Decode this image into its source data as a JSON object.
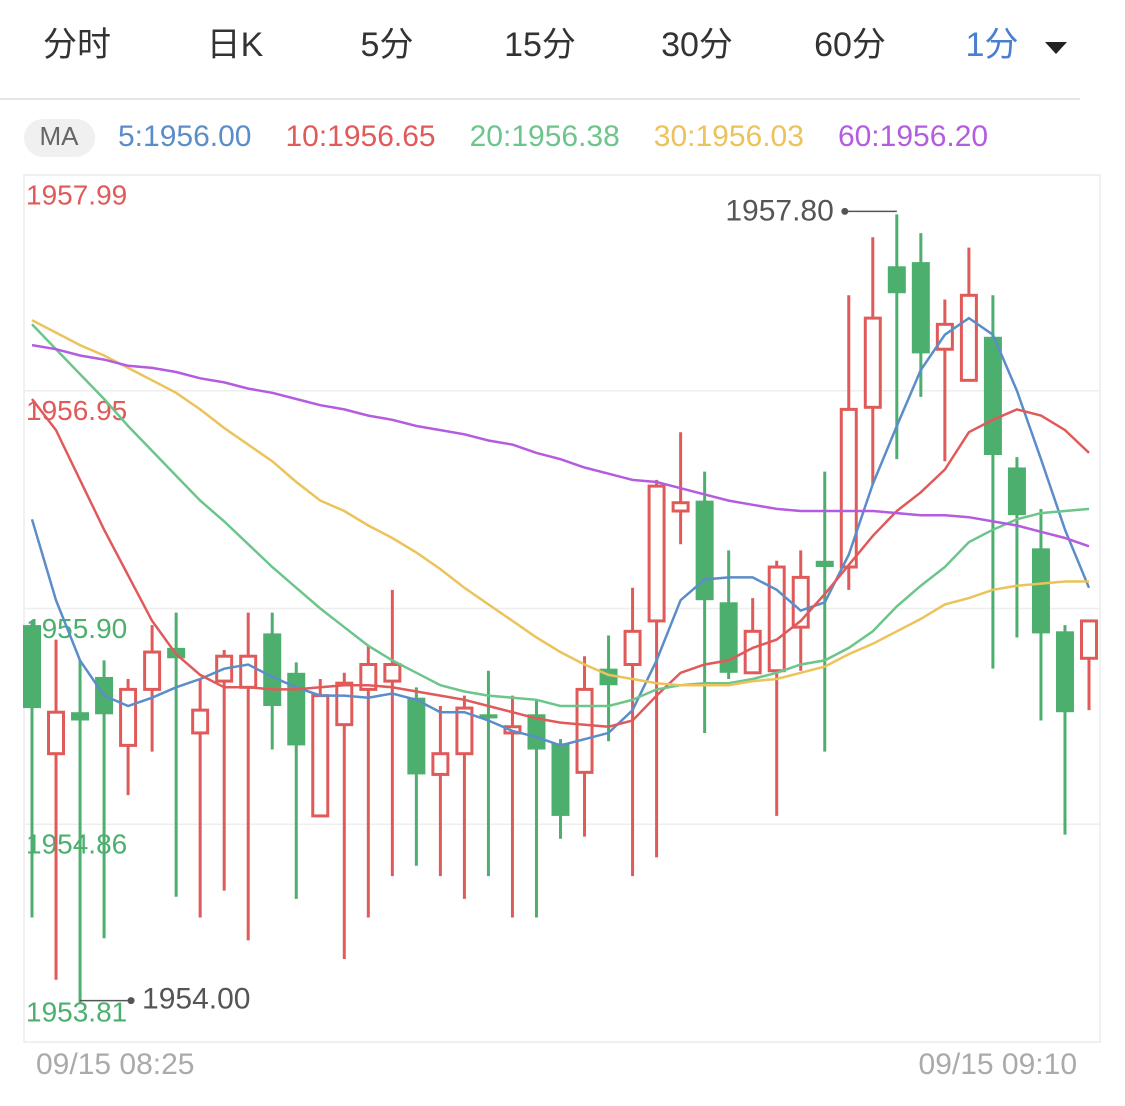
{
  "tabs": {
    "items": [
      "分时",
      "日K",
      "5分",
      "15分",
      "30分",
      "60分",
      "1分"
    ],
    "selected": 6
  },
  "chart_data": {
    "type": "candlestick",
    "legend_title": "MA",
    "categories": [
      "09/15 08:25",
      null,
      null,
      null,
      null,
      null,
      null,
      null,
      null,
      null,
      null,
      null,
      null,
      null,
      null,
      null,
      null,
      null,
      null,
      null,
      null,
      null,
      null,
      null,
      null,
      null,
      null,
      null,
      null,
      null,
      null,
      null,
      null,
      null,
      null,
      null,
      null,
      null,
      null,
      null,
      null,
      null,
      null,
      null,
      "09/15 09:10"
    ],
    "open": [
      1955.82,
      1955.2,
      1955.4,
      1955.57,
      1955.24,
      1955.51,
      1955.71,
      1955.3,
      1955.55,
      1955.52,
      1955.78,
      1955.59,
      1954.9,
      1955.34,
      1955.51,
      1955.55,
      1955.47,
      1955.1,
      1955.2,
      1955.39,
      1955.3,
      1955.39,
      1955.25,
      1955.11,
      1955.61,
      1955.63,
      1955.84,
      1956.37,
      1956.42,
      1955.93,
      1955.59,
      1955.6,
      1955.81,
      1956.13,
      1956.1,
      1956.87,
      1957.55,
      1957.57,
      1957.15,
      1957.0,
      1957.21,
      1956.58,
      1956.19,
      1955.79,
      1955.66
    ],
    "high": [
      1955.84,
      1955.75,
      1955.65,
      1955.65,
      1955.56,
      1955.82,
      1955.88,
      1955.56,
      1955.7,
      1955.88,
      1955.88,
      1955.64,
      1955.56,
      1955.59,
      1955.72,
      1955.99,
      1955.52,
      1955.43,
      1955.48,
      1955.6,
      1955.48,
      1955.46,
      1955.27,
      1955.67,
      1955.77,
      1956.0,
      1956.52,
      1956.75,
      1956.56,
      1956.18,
      1955.95,
      1956.13,
      1956.18,
      1956.56,
      1957.41,
      1957.69,
      1957.8,
      1957.71,
      1957.39,
      1957.64,
      1957.41,
      1956.63,
      1956.38,
      1955.82,
      1955.84
    ],
    "low": [
      1954.41,
      1954.11,
      1954.0,
      1954.31,
      1955.0,
      1955.21,
      1954.51,
      1954.41,
      1954.54,
      1954.3,
      1955.22,
      1954.5,
      1954.9,
      1954.21,
      1954.41,
      1954.61,
      1954.66,
      1954.61,
      1954.5,
      1954.61,
      1954.41,
      1954.41,
      1954.79,
      1954.8,
      1955.26,
      1954.61,
      1954.7,
      1956.21,
      1955.3,
      1955.56,
      1955.59,
      1954.9,
      1955.6,
      1955.21,
      1955.99,
      1956.5,
      1956.62,
      1956.92,
      1956.61,
      1957.0,
      1955.61,
      1955.76,
      1955.36,
      1954.81,
      1955.41
    ],
    "close": [
      1955.42,
      1955.4,
      1955.36,
      1955.39,
      1955.51,
      1955.69,
      1955.66,
      1955.41,
      1955.67,
      1955.67,
      1955.43,
      1955.24,
      1955.48,
      1955.54,
      1955.63,
      1955.63,
      1955.1,
      1955.2,
      1955.42,
      1955.37,
      1955.33,
      1955.22,
      1954.9,
      1955.51,
      1955.53,
      1955.79,
      1956.49,
      1956.41,
      1955.94,
      1955.59,
      1955.79,
      1956.1,
      1956.05,
      1956.1,
      1956.86,
      1957.3,
      1957.42,
      1957.13,
      1957.27,
      1957.41,
      1956.64,
      1956.35,
      1955.78,
      1955.4,
      1955.84
    ],
    "up_color": "#e05a5a",
    "down_color": "#4caf6e",
    "series": [
      {
        "name": "5:1956.00",
        "color": "#5b8dc9",
        "values": [
          1956.33,
          1955.94,
          1955.65,
          1955.48,
          1955.43,
          1955.47,
          1955.52,
          1955.56,
          1955.61,
          1955.63,
          1955.57,
          1955.52,
          1955.48,
          1955.48,
          1955.47,
          1955.49,
          1955.46,
          1955.4,
          1955.4,
          1955.36,
          1955.31,
          1955.28,
          1955.24,
          1955.27,
          1955.3,
          1955.41,
          1955.65,
          1955.94,
          1956.04,
          1956.05,
          1956.05,
          1955.99,
          1955.89,
          1955.93,
          1956.16,
          1956.5,
          1956.78,
          1957.05,
          1957.22,
          1957.3,
          1957.22,
          1956.95,
          1956.62,
          1956.28,
          1956.0
        ]
      },
      {
        "name": "10:1956.65",
        "color": "#e05a5a",
        "values": [
          1956.91,
          1956.76,
          1956.52,
          1956.28,
          1956.06,
          1955.84,
          1955.68,
          1955.58,
          1955.52,
          1955.52,
          1955.51,
          1955.51,
          1955.52,
          1955.53,
          1955.53,
          1955.52,
          1955.5,
          1955.48,
          1955.46,
          1955.43,
          1955.4,
          1955.37,
          1955.35,
          1955.34,
          1955.33,
          1955.36,
          1955.48,
          1955.59,
          1955.63,
          1955.65,
          1955.71,
          1955.75,
          1955.84,
          1955.97,
          1956.11,
          1956.25,
          1956.37,
          1956.46,
          1956.57,
          1956.75,
          1956.81,
          1956.86,
          1956.83,
          1956.76,
          1956.65
        ]
      },
      {
        "name": "20:1956.38",
        "color": "#6cc58a",
        "values": [
          1957.27,
          1957.15,
          1957.03,
          1956.91,
          1956.78,
          1956.66,
          1956.54,
          1956.42,
          1956.32,
          1956.21,
          1956.1,
          1956.0,
          1955.9,
          1955.81,
          1955.72,
          1955.65,
          1955.59,
          1955.53,
          1955.5,
          1955.48,
          1955.47,
          1955.46,
          1955.43,
          1955.43,
          1955.43,
          1955.46,
          1955.51,
          1955.53,
          1955.54,
          1955.54,
          1955.56,
          1955.59,
          1955.63,
          1955.65,
          1955.71,
          1955.79,
          1955.91,
          1956.01,
          1956.1,
          1956.22,
          1956.28,
          1956.33,
          1956.36,
          1956.37,
          1956.38
        ]
      },
      {
        "name": "30:1956.03",
        "color": "#ecc35a",
        "values": [
          1957.29,
          1957.23,
          1957.17,
          1957.12,
          1957.06,
          1957.0,
          1956.94,
          1956.86,
          1956.77,
          1956.69,
          1956.61,
          1956.51,
          1956.42,
          1956.37,
          1956.3,
          1956.24,
          1956.17,
          1956.09,
          1956.0,
          1955.92,
          1955.84,
          1955.76,
          1955.69,
          1955.63,
          1955.58,
          1955.56,
          1955.54,
          1955.53,
          1955.53,
          1955.53,
          1955.55,
          1955.56,
          1955.59,
          1955.62,
          1955.68,
          1955.73,
          1955.79,
          1955.85,
          1955.92,
          1955.95,
          1955.99,
          1956.01,
          1956.02,
          1956.03,
          1956.03
        ]
      },
      {
        "name": "60:1956.20",
        "color": "#b45ce0",
        "values": [
          1957.17,
          1957.15,
          1957.12,
          1957.1,
          1957.07,
          1957.06,
          1957.04,
          1957.01,
          1956.99,
          1956.96,
          1956.94,
          1956.91,
          1956.88,
          1956.86,
          1956.83,
          1956.81,
          1956.78,
          1956.76,
          1956.74,
          1956.71,
          1956.69,
          1956.65,
          1956.62,
          1956.58,
          1956.55,
          1956.52,
          1956.51,
          1956.48,
          1956.45,
          1956.42,
          1956.4,
          1956.38,
          1956.37,
          1956.37,
          1956.37,
          1956.37,
          1956.36,
          1956.35,
          1956.35,
          1956.34,
          1956.32,
          1956.3,
          1956.27,
          1956.24,
          1956.2
        ]
      }
    ],
    "ylim": [
      1953.81,
      1957.99
    ],
    "yticks": [
      1957.99,
      1956.95,
      1955.9,
      1954.86,
      1953.81
    ],
    "ytick_labels": [
      "1957.99",
      "1956.95",
      "1955.90",
      "1954.86",
      "1953.81"
    ],
    "grid": true,
    "annotations": {
      "high": "1957.80",
      "low": "1954.00"
    }
  }
}
